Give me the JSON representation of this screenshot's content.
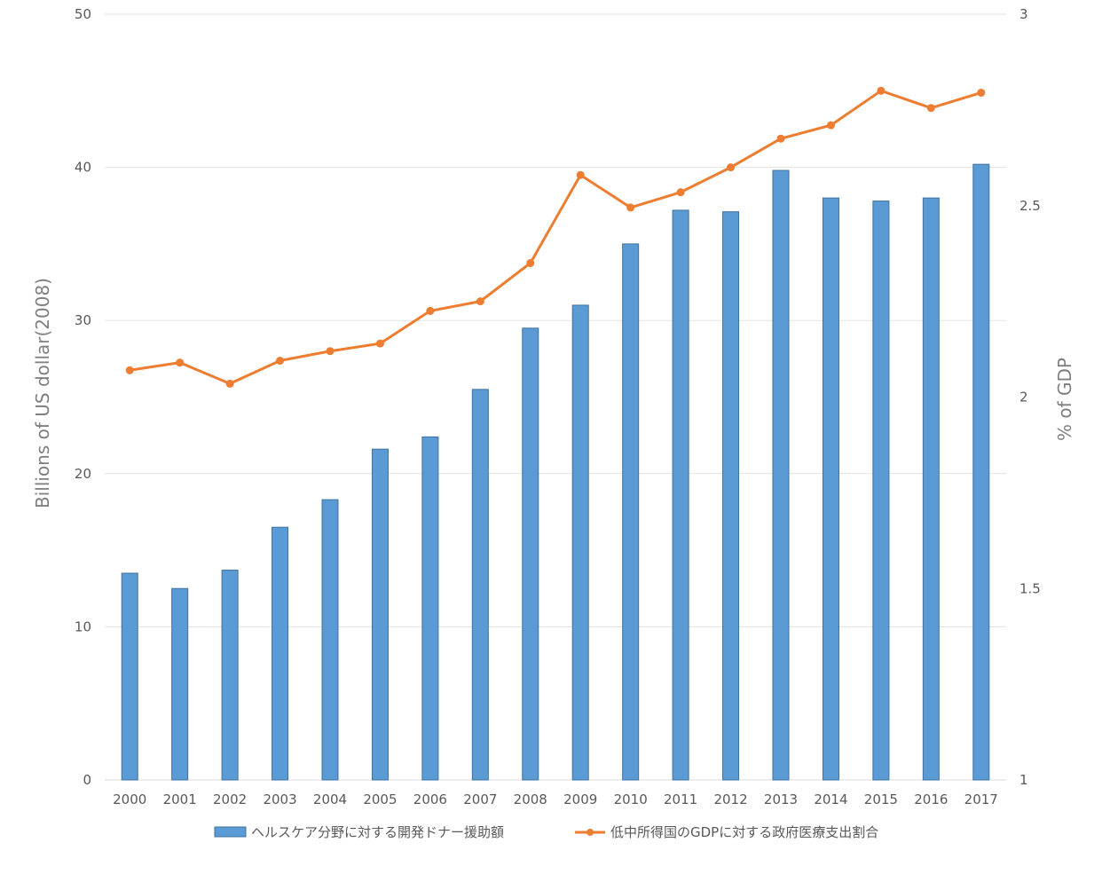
{
  "chart_data": {
    "type": "bar",
    "categories": [
      "2000",
      "2001",
      "2002",
      "2003",
      "2004",
      "2005",
      "2006",
      "2007",
      "2008",
      "2009",
      "2010",
      "2011",
      "2012",
      "2013",
      "2014",
      "2015",
      "2016",
      "2017"
    ],
    "series": [
      {
        "name": "ヘルスケア分野に対する開発ドナー援助額",
        "type": "bar",
        "axis": "left",
        "color": "#5b9bd5",
        "values": [
          13.5,
          12.5,
          13.7,
          16.5,
          18.3,
          21.6,
          22.4,
          25.5,
          29.5,
          31.0,
          35.0,
          37.2,
          37.1,
          39.8,
          38.0,
          37.8,
          38.0,
          40.2
        ]
      },
      {
        "name": "低中所得国のGDPに対する政府医療支出割合",
        "type": "line",
        "axis": "right",
        "color": "#ed7d31",
        "values": [
          2.07,
          2.09,
          2.035,
          2.095,
          2.12,
          2.14,
          2.225,
          2.25,
          2.35,
          2.58,
          2.495,
          2.535,
          2.6,
          2.675,
          2.71,
          2.8,
          2.755,
          2.795
        ]
      }
    ],
    "ylabel": "Billions of US dollar(2008)",
    "y2label": "% of  GDP",
    "ylim": [
      0,
      50
    ],
    "y2lim": [
      1,
      3
    ],
    "yticks": [
      "0",
      "10",
      "20",
      "30",
      "40",
      "50"
    ],
    "y2ticks": [
      "1",
      "1.5",
      "2",
      "2.5",
      "3"
    ],
    "grid": true,
    "legend_position": "bottom"
  }
}
